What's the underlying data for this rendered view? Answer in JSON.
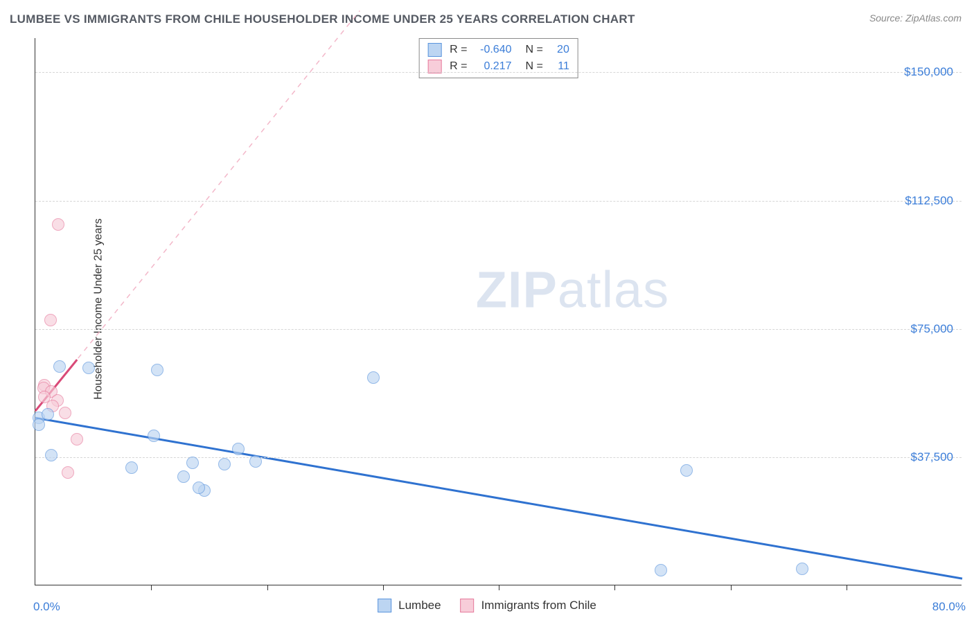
{
  "title": "LUMBEE VS IMMIGRANTS FROM CHILE HOUSEHOLDER INCOME UNDER 25 YEARS CORRELATION CHART",
  "source": "Source: ZipAtlas.com",
  "watermark_a": "ZIP",
  "watermark_b": "atlas",
  "chart": {
    "type": "scatter",
    "background_color": "#ffffff",
    "grid_color": "#d6d6d6",
    "border_color": "#333333",
    "ylabel": "Householder Income Under 25 years",
    "ylabel_fontsize": 16,
    "xlim": [
      0,
      80
    ],
    "ylim": [
      0,
      160000
    ],
    "xmin_label": "0.0%",
    "xmax_label": "80.0%",
    "yticks": [
      {
        "v": 37500,
        "label": "$37,500"
      },
      {
        "v": 75000,
        "label": "$75,000"
      },
      {
        "v": 112500,
        "label": "$112,500"
      },
      {
        "v": 150000,
        "label": "$150,000"
      }
    ],
    "xticks_minor": [
      10,
      20,
      30,
      40,
      50,
      60,
      70
    ],
    "tick_label_color": "#3b7dd8",
    "tick_label_fontsize": 17
  },
  "series": {
    "lumbee": {
      "label": "Lumbee",
      "marker_fill": "#bcd5f2",
      "marker_stroke": "#5a94dd",
      "marker_radius": 9,
      "fill_opacity": 0.65,
      "R": "-0.640",
      "N": "20",
      "trend": {
        "color": "#2f72d0",
        "width": 3,
        "dash": "none",
        "x1": 0,
        "y1": 49000,
        "x2": 80,
        "y2": 2000,
        "extend_x1": 0,
        "extend_y1": 49000,
        "extend_x2": 80,
        "extend_y2": 2000
      },
      "points": [
        {
          "x": 0.3,
          "y": 49000
        },
        {
          "x": 0.3,
          "y": 47000
        },
        {
          "x": 1.1,
          "y": 50000
        },
        {
          "x": 2.1,
          "y": 64000
        },
        {
          "x": 4.6,
          "y": 63500
        },
        {
          "x": 10.5,
          "y": 63000
        },
        {
          "x": 29.2,
          "y": 60800
        },
        {
          "x": 1.4,
          "y": 38000
        },
        {
          "x": 8.3,
          "y": 34500
        },
        {
          "x": 12.8,
          "y": 31800
        },
        {
          "x": 10.2,
          "y": 43800
        },
        {
          "x": 13.6,
          "y": 35800
        },
        {
          "x": 14.6,
          "y": 27800
        },
        {
          "x": 14.1,
          "y": 28500
        },
        {
          "x": 16.3,
          "y": 35500
        },
        {
          "x": 17.5,
          "y": 40000
        },
        {
          "x": 19.0,
          "y": 36200
        },
        {
          "x": 56.2,
          "y": 33600
        },
        {
          "x": 54.0,
          "y": 4500
        },
        {
          "x": 66.2,
          "y": 4800
        }
      ]
    },
    "chile": {
      "label": "Immigrants from Chile",
      "marker_fill": "#f7cdd9",
      "marker_stroke": "#e6799c",
      "marker_radius": 9,
      "fill_opacity": 0.65,
      "R": "0.217",
      "N": "11",
      "trend": {
        "color": "#d94a78",
        "width": 3,
        "dash": "none",
        "x1": 0,
        "y1": 51000,
        "x2": 3.6,
        "y2": 66000,
        "extend_color": "#f3b7c9",
        "extend_dash": "7,7",
        "extend_width": 1.5,
        "extend_x1": 0,
        "extend_y1": 51000,
        "extend_x2": 28,
        "extend_y2": 168000
      },
      "points": [
        {
          "x": 2.0,
          "y": 105500
        },
        {
          "x": 1.3,
          "y": 77500
        },
        {
          "x": 0.8,
          "y": 58500
        },
        {
          "x": 0.7,
          "y": 57800
        },
        {
          "x": 1.4,
          "y": 56800
        },
        {
          "x": 0.8,
          "y": 55000
        },
        {
          "x": 1.9,
          "y": 54000
        },
        {
          "x": 1.5,
          "y": 52500
        },
        {
          "x": 2.6,
          "y": 50500
        },
        {
          "x": 3.6,
          "y": 42800
        },
        {
          "x": 2.8,
          "y": 33000
        }
      ]
    }
  },
  "legend_top": {
    "border_color": "#8a8a8a",
    "rows": [
      {
        "swatch_fill": "#bcd5f2",
        "swatch_stroke": "#5a94dd",
        "r_label": "R =",
        "r_val": "-0.640",
        "n_label": "N =",
        "n_val": "20"
      },
      {
        "swatch_fill": "#f7cdd9",
        "swatch_stroke": "#e6799c",
        "r_label": "R =",
        "r_val": "0.217",
        "n_label": "N =",
        "n_val": "11"
      }
    ]
  },
  "legend_bottom": {
    "items": [
      {
        "swatch_fill": "#bcd5f2",
        "swatch_stroke": "#5a94dd",
        "label": "Lumbee"
      },
      {
        "swatch_fill": "#f7cdd9",
        "swatch_stroke": "#e6799c",
        "label": "Immigrants from Chile"
      }
    ]
  }
}
